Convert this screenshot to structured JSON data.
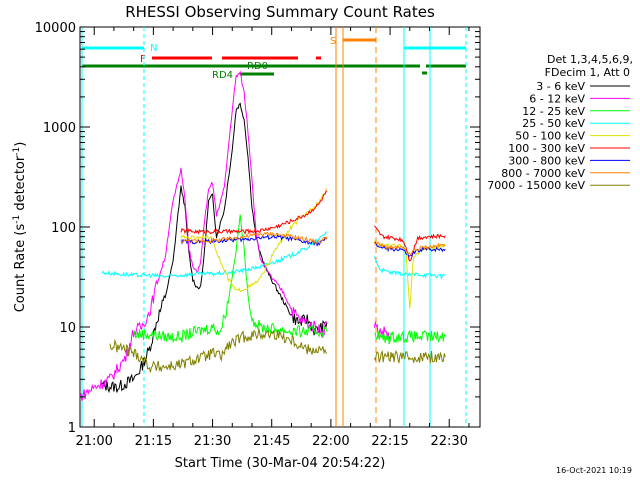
{
  "chart_data": {
    "type": "line",
    "title": "RHESSI Observing Summary Count Rates",
    "xlabel": "Start Time (30-Mar-04 20:54:22)",
    "ylabel": "Count Rate (s⁻¹ detector⁻¹)",
    "ylabel_main": "Count Rate (s",
    "ylabel_mid": " detector",
    "ylabel_end": ")",
    "ylabel_sup": "-1",
    "yscale": "log",
    "ylim": [
      1,
      10000
    ],
    "xlim_minutes": [
      -3.6,
      97.8
    ],
    "x_ticks": [
      {
        "t": 0,
        "label": "21:00"
      },
      {
        "t": 15,
        "label": "21:15"
      },
      {
        "t": 30,
        "label": "21:30"
      },
      {
        "t": 45,
        "label": "21:45"
      },
      {
        "t": 60,
        "label": "22:00"
      },
      {
        "t": 75,
        "label": "22:15"
      },
      {
        "t": 90,
        "label": "22:30"
      }
    ],
    "y_ticks": [
      {
        "v": 1,
        "label": "1"
      },
      {
        "v": 10,
        "label": "10"
      },
      {
        "v": 100,
        "label": "100"
      },
      {
        "v": 1000,
        "label": "1000"
      },
      {
        "v": 10000,
        "label": "10000"
      }
    ],
    "legend": {
      "header_lines": [
        "Det 1,3,4,5,6,9,",
        "FDecim 1, Att 0"
      ],
      "placement": "right outside"
    },
    "series": [
      {
        "name": "3 - 6 keV",
        "color": "#000000",
        "points": [
          [
            -3.6,
            2.5
          ],
          [
            2,
            2.6
          ],
          [
            6,
            2.5
          ],
          [
            10,
            3
          ],
          [
            12,
            4
          ],
          [
            14,
            6
          ],
          [
            16,
            12
          ],
          [
            18,
            20
          ],
          [
            19,
            30
          ],
          [
            20,
            45
          ],
          [
            21,
            110
          ],
          [
            22,
            250
          ],
          [
            23,
            160
          ],
          [
            24,
            55
          ],
          [
            25,
            30
          ],
          [
            26,
            25
          ],
          [
            27,
            25
          ],
          [
            28,
            60
          ],
          [
            29,
            180
          ],
          [
            30,
            210
          ],
          [
            31,
            80
          ],
          [
            33,
            150
          ],
          [
            35,
            600
          ],
          [
            36,
            1500
          ],
          [
            37,
            1700
          ],
          [
            38,
            1200
          ],
          [
            39,
            500
          ],
          [
            40,
            160
          ],
          [
            41,
            80
          ],
          [
            42,
            55
          ],
          [
            44,
            35
          ],
          [
            46,
            25
          ],
          [
            48,
            18
          ],
          [
            50,
            13
          ],
          [
            52,
            11
          ],
          [
            54,
            12
          ],
          [
            56,
            9
          ],
          [
            58,
            10
          ],
          [
            59,
            11
          ]
        ]
      },
      {
        "name": "6 - 12 keV",
        "color": "#ff00ff",
        "points": [
          [
            -3.6,
            2
          ],
          [
            0,
            2.5
          ],
          [
            4,
            3
          ],
          [
            8,
            5
          ],
          [
            10,
            9
          ],
          [
            12,
            10
          ],
          [
            14,
            14
          ],
          [
            16,
            28
          ],
          [
            18,
            50
          ],
          [
            19,
            100
          ],
          [
            20,
            180
          ],
          [
            21,
            260
          ],
          [
            22,
            380
          ],
          [
            23,
            200
          ],
          [
            24,
            60
          ],
          [
            25,
            40
          ],
          [
            26,
            35
          ],
          [
            27,
            45
          ],
          [
            28,
            120
          ],
          [
            29,
            230
          ],
          [
            30,
            280
          ],
          [
            31,
            130
          ],
          [
            33,
            250
          ],
          [
            35,
            1500
          ],
          [
            36,
            3200
          ],
          [
            37,
            3500
          ],
          [
            38,
            2200
          ],
          [
            39,
            900
          ],
          [
            40,
            300
          ],
          [
            41,
            90
          ],
          [
            42,
            50
          ],
          [
            44,
            35
          ],
          [
            46,
            28
          ],
          [
            48,
            22
          ],
          [
            50,
            15
          ],
          [
            52,
            12
          ],
          [
            54,
            11
          ],
          [
            56,
            10
          ],
          [
            58,
            9
          ],
          [
            59,
            11
          ],
          [
            71,
            11
          ],
          [
            72,
            9
          ],
          [
            74,
            9
          ],
          [
            75,
            8
          ]
        ]
      },
      {
        "name": "12 - 25 keV",
        "color": "#00ff00",
        "points": [
          [
            -3.6,
            8
          ],
          [
            4,
            8
          ],
          [
            10,
            8.5
          ],
          [
            14,
            8.5
          ],
          [
            18,
            8
          ],
          [
            22,
            8
          ],
          [
            26,
            9
          ],
          [
            30,
            10
          ],
          [
            32,
            9
          ],
          [
            34,
            18
          ],
          [
            36,
            60
          ],
          [
            37,
            130
          ],
          [
            38,
            60
          ],
          [
            39,
            20
          ],
          [
            40,
            12
          ],
          [
            42,
            10
          ],
          [
            46,
            9.5
          ],
          [
            50,
            9
          ],
          [
            54,
            9
          ],
          [
            58,
            9
          ],
          [
            59,
            9
          ],
          [
            71,
            9
          ],
          [
            73,
            7.5
          ],
          [
            76,
            8
          ],
          [
            80,
            8
          ],
          [
            83,
            8
          ],
          [
            86,
            8
          ],
          [
            89,
            8
          ]
        ]
      },
      {
        "name": "25 - 50 keV",
        "color": "#00ffff",
        "points": [
          [
            -3.6,
            36
          ],
          [
            2,
            35
          ],
          [
            6,
            34
          ],
          [
            10,
            33
          ],
          [
            14,
            33
          ],
          [
            18,
            32
          ],
          [
            22,
            33
          ],
          [
            26,
            34
          ],
          [
            30,
            34
          ],
          [
            34,
            35
          ],
          [
            38,
            37
          ],
          [
            42,
            40
          ],
          [
            46,
            45
          ],
          [
            50,
            52
          ],
          [
            54,
            62
          ],
          [
            57,
            75
          ],
          [
            59,
            90
          ],
          [
            71,
            52
          ],
          [
            72,
            40
          ],
          [
            73,
            37
          ],
          [
            75,
            35
          ],
          [
            78,
            34
          ],
          [
            80,
            33
          ],
          [
            82,
            34
          ],
          [
            84,
            33
          ],
          [
            86,
            33
          ],
          [
            88,
            32
          ],
          [
            89,
            33
          ]
        ]
      },
      {
        "name": "50 - 100 keV",
        "color": "#e0e000",
        "points": [
          [
            -3.6,
            87
          ],
          [
            4,
            84
          ],
          [
            10,
            82
          ],
          [
            16,
            80
          ],
          [
            22,
            79
          ],
          [
            26,
            79
          ],
          [
            28,
            80
          ],
          [
            30,
            75
          ],
          [
            32,
            45
          ],
          [
            34,
            30
          ],
          [
            36,
            23
          ],
          [
            38,
            24
          ],
          [
            40,
            26
          ],
          [
            42,
            30
          ],
          [
            46,
            60
          ],
          [
            50,
            100
          ],
          [
            54,
            140
          ],
          [
            57,
            180
          ],
          [
            59,
            240
          ],
          [
            71,
            70
          ],
          [
            73,
            65
          ],
          [
            75,
            65
          ],
          [
            78,
            64
          ],
          [
            79,
            60
          ],
          [
            80,
            15
          ],
          [
            81,
            50
          ],
          [
            83,
            60
          ],
          [
            86,
            62
          ],
          [
            89,
            65
          ]
        ]
      },
      {
        "name": "100 - 300 keV",
        "color": "#ff0000",
        "points": [
          [
            -3.6,
            110
          ],
          [
            4,
            105
          ],
          [
            10,
            100
          ],
          [
            16,
            95
          ],
          [
            22,
            92
          ],
          [
            26,
            90
          ],
          [
            30,
            90
          ],
          [
            34,
            90
          ],
          [
            38,
            90
          ],
          [
            42,
            92
          ],
          [
            46,
            100
          ],
          [
            50,
            115
          ],
          [
            54,
            135
          ],
          [
            57,
            170
          ],
          [
            59,
            230
          ],
          [
            71,
            100
          ],
          [
            73,
            80
          ],
          [
            75,
            78
          ],
          [
            78,
            75
          ],
          [
            79,
            65
          ],
          [
            80,
            45
          ],
          [
            81,
            60
          ],
          [
            82,
            78
          ],
          [
            84,
            80
          ],
          [
            86,
            80
          ],
          [
            89,
            82
          ]
        ]
      },
      {
        "name": "300 - 800 keV",
        "color": "#0000ff",
        "points": [
          [
            -3.6,
            78
          ],
          [
            4,
            76
          ],
          [
            10,
            74
          ],
          [
            16,
            73
          ],
          [
            22,
            72
          ],
          [
            26,
            71
          ],
          [
            30,
            72
          ],
          [
            34,
            74
          ],
          [
            38,
            75
          ],
          [
            42,
            78
          ],
          [
            46,
            80
          ],
          [
            50,
            76
          ],
          [
            54,
            70
          ],
          [
            57,
            68
          ],
          [
            59,
            78
          ],
          [
            71,
            68
          ],
          [
            73,
            62
          ],
          [
            75,
            60
          ],
          [
            78,
            60
          ],
          [
            79,
            55
          ],
          [
            80,
            50
          ],
          [
            81,
            55
          ],
          [
            83,
            60
          ],
          [
            86,
            60
          ],
          [
            89,
            60
          ]
        ]
      },
      {
        "name": "800 - 7000 keV",
        "color": "#ff8000",
        "points": [
          [
            -3.6,
            82
          ],
          [
            4,
            80
          ],
          [
            10,
            78
          ],
          [
            16,
            75
          ],
          [
            22,
            73
          ],
          [
            26,
            72
          ],
          [
            30,
            73
          ],
          [
            34,
            76
          ],
          [
            38,
            80
          ],
          [
            42,
            85
          ],
          [
            46,
            85
          ],
          [
            50,
            80
          ],
          [
            54,
            75
          ],
          [
            57,
            70
          ],
          [
            59,
            80
          ],
          [
            71,
            70
          ],
          [
            73,
            65
          ],
          [
            75,
            62
          ],
          [
            78,
            62
          ],
          [
            79,
            58
          ],
          [
            80,
            52
          ],
          [
            81,
            58
          ],
          [
            83,
            62
          ],
          [
            86,
            64
          ],
          [
            89,
            66
          ]
        ]
      },
      {
        "name": "7000 - 15000 keV",
        "color": "#808000",
        "points": [
          [
            -3.6,
            6.5
          ],
          [
            4,
            6.5
          ],
          [
            8,
            6
          ],
          [
            12,
            5
          ],
          [
            14,
            4
          ],
          [
            18,
            4
          ],
          [
            22,
            4.2
          ],
          [
            26,
            4.8
          ],
          [
            28,
            5
          ],
          [
            30,
            5.5
          ],
          [
            32,
            5
          ],
          [
            34,
            6.5
          ],
          [
            38,
            8
          ],
          [
            42,
            8.5
          ],
          [
            46,
            8.5
          ],
          [
            50,
            7.5
          ],
          [
            54,
            6
          ],
          [
            57,
            6
          ],
          [
            59,
            5.5
          ],
          [
            71,
            5
          ],
          [
            74,
            5
          ],
          [
            77,
            5
          ],
          [
            80,
            5
          ],
          [
            83,
            5
          ],
          [
            86,
            5
          ],
          [
            89,
            5
          ]
        ]
      }
    ],
    "annotations": {
      "N_label": "N",
      "F_label": "F",
      "S_label": "S",
      "RD0_label": "RD0",
      "RD4_label": "RD4"
    }
  },
  "footer": {
    "print_date": "16-Oct-2021 10:19"
  }
}
